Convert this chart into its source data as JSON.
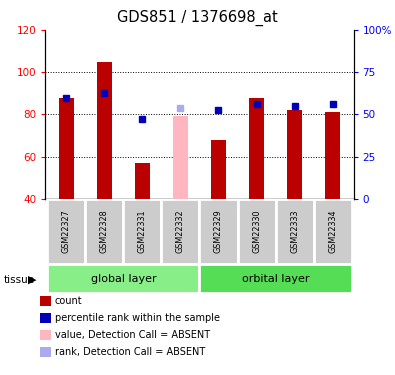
{
  "title": "GDS851 / 1376698_at",
  "samples": [
    "GSM22327",
    "GSM22328",
    "GSM22331",
    "GSM22332",
    "GSM22329",
    "GSM22330",
    "GSM22333",
    "GSM22334"
  ],
  "red_values": [
    88,
    105,
    57,
    null,
    68,
    88,
    82,
    81
  ],
  "pink_values": [
    null,
    null,
    null,
    79,
    null,
    null,
    null,
    null
  ],
  "blue_dots": [
    88,
    90,
    78,
    null,
    82,
    85,
    84,
    85
  ],
  "light_blue_dots": [
    null,
    null,
    null,
    83,
    null,
    null,
    null,
    null
  ],
  "ylim": [
    40,
    120
  ],
  "y2lim": [
    0,
    100
  ],
  "yticks_left": [
    40,
    60,
    80,
    100,
    120
  ],
  "ytick_labels_right": [
    "0",
    "25",
    "50",
    "75",
    "100%"
  ],
  "yticks_right_vals": [
    0,
    25,
    50,
    75,
    100
  ],
  "grid_lines": [
    60,
    80,
    100
  ],
  "bar_color_red": "#BB0000",
  "bar_color_pink": "#FFB6C1",
  "dot_color_blue": "#0000BB",
  "dot_color_light_blue": "#AAAAEE",
  "sample_box_color": "#CCCCCC",
  "global_layer_color": "#88EE88",
  "orbital_layer_color": "#55DD55",
  "tissue_label": "tissue",
  "legend": [
    {
      "label": "count",
      "color": "#BB0000"
    },
    {
      "label": "percentile rank within the sample",
      "color": "#0000BB"
    },
    {
      "label": "value, Detection Call = ABSENT",
      "color": "#FFB6C1"
    },
    {
      "label": "rank, Detection Call = ABSENT",
      "color": "#AAAAEE"
    }
  ]
}
